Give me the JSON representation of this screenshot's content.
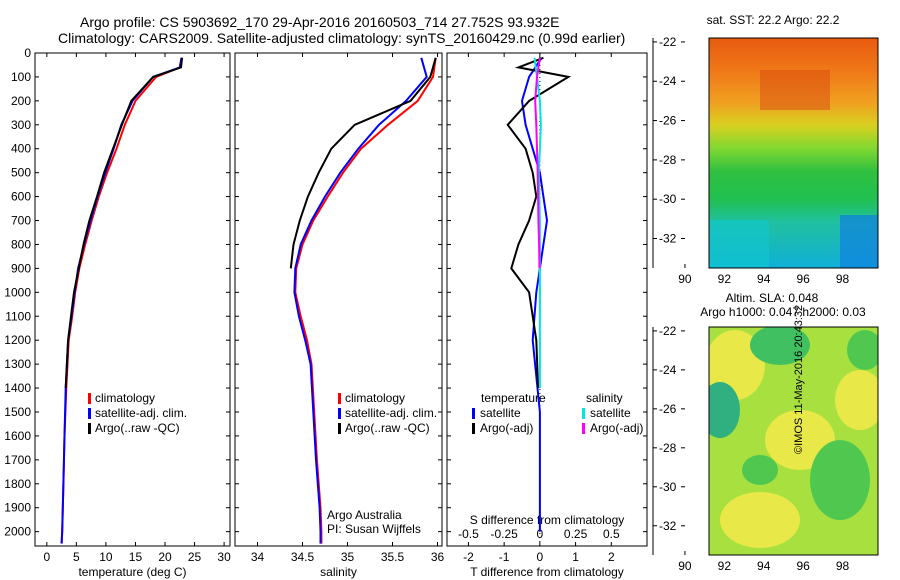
{
  "title": {
    "line1": "Argo profile: CS 5903692_170 29-Apr-2016 20160503_714 27.752S 93.932E",
    "line2": "Climatology: CARS2009. Satellite-adjusted climatology: synTS_20160429.nc (0.99d earlier)"
  },
  "credits": {
    "institution": "Argo Australia",
    "pi": "PI: Susan Wijffels",
    "stamp": "©IMOS 11-May-2016 20:43:32"
  },
  "colors": {
    "climatology": "#ff0000",
    "satellite": "#0000ff",
    "argo": "#000000",
    "sal_satellite": "#00e5e5",
    "sal_argo": "#ff00ff"
  },
  "chart_data": [
    {
      "type": "line",
      "id": "temperature-profile",
      "xlabel": "temperature (deg C)",
      "ylabel": "",
      "xlim": [
        -2,
        31
      ],
      "ylim": [
        2060,
        0
      ],
      "xticks": [
        0,
        5,
        10,
        15,
        20,
        25,
        30
      ],
      "yticks": [
        0,
        100,
        200,
        300,
        400,
        500,
        600,
        700,
        800,
        900,
        1000,
        1100,
        1200,
        1300,
        1400,
        1500,
        1600,
        1700,
        1800,
        1900,
        2000
      ],
      "legend": [
        "climatology",
        "satellite-adj. clim.",
        "Argo(..raw -QC)"
      ],
      "series": [
        {
          "name": "climatology",
          "color": "#ff0000",
          "x": [
            22.8,
            22.5,
            18.5,
            15,
            13.2,
            11.8,
            10.2,
            8.8,
            7.6,
            6.5,
            5.5,
            4.8,
            4.3,
            3.7,
            3.3,
            3.0,
            2.8,
            2.7,
            2.6,
            2.5
          ],
          "y": [
            20,
            60,
            100,
            200,
            300,
            400,
            500,
            600,
            700,
            800,
            900,
            1000,
            1100,
            1200,
            1400,
            1600,
            1800,
            1900,
            2000,
            2050
          ]
        },
        {
          "name": "satellite-adj. clim.",
          "color": "#0000ff",
          "x": [
            22.8,
            22.5,
            18.0,
            14.5,
            12.6,
            11.3,
            9.9,
            8.6,
            7.4,
            6.3,
            5.3,
            4.7,
            4.2,
            3.6,
            3.2,
            3.0,
            2.8,
            2.7,
            2.6,
            2.5
          ],
          "y": [
            20,
            60,
            100,
            200,
            300,
            400,
            500,
            600,
            700,
            800,
            900,
            1000,
            1100,
            1200,
            1400,
            1600,
            1800,
            1900,
            2000,
            2050
          ]
        },
        {
          "name": "Argo(..raw -QC)",
          "color": "#000000",
          "x": [
            22.9,
            22.7,
            18.0,
            14.3,
            12.7,
            11.2,
            9.7,
            8.5,
            7.2,
            6.2,
            5.0,
            4.6,
            4.1,
            3.6,
            3.2
          ],
          "y": [
            20,
            60,
            100,
            200,
            300,
            400,
            500,
            600,
            700,
            800,
            950,
            1000,
            1100,
            1200,
            1400
          ]
        }
      ]
    },
    {
      "type": "line",
      "id": "salinity-profile",
      "xlabel": "salinity",
      "ylabel": "",
      "xlim": [
        33.75,
        36.05
      ],
      "ylim": [
        2060,
        0
      ],
      "xticks": [
        34,
        34.5,
        35,
        35.5,
        36
      ],
      "legend": [
        "climatology",
        "satellite-adj. clim.",
        "Argo(..raw -QC)"
      ],
      "series": [
        {
          "name": "climatology",
          "color": "#ff0000",
          "x": [
            35.98,
            35.95,
            35.78,
            35.45,
            35.15,
            34.95,
            34.78,
            34.62,
            34.5,
            34.43,
            34.42,
            34.48,
            34.55,
            34.6,
            34.63,
            34.66,
            34.68,
            34.7,
            34.71,
            34.71
          ],
          "y": [
            20,
            100,
            200,
            300,
            400,
            500,
            600,
            700,
            800,
            900,
            1000,
            1100,
            1200,
            1300,
            1500,
            1700,
            1800,
            1900,
            2000,
            2050
          ]
        },
        {
          "name": "satellite-adj. clim.",
          "color": "#0000ff",
          "x": [
            35.82,
            35.88,
            35.65,
            35.35,
            35.12,
            34.92,
            34.75,
            34.6,
            34.48,
            34.42,
            34.41,
            34.46,
            34.53,
            34.59,
            34.62,
            34.65,
            34.67,
            34.69,
            34.7,
            34.7
          ],
          "y": [
            20,
            100,
            200,
            300,
            400,
            500,
            600,
            700,
            800,
            900,
            1000,
            1100,
            1200,
            1300,
            1500,
            1700,
            1800,
            1900,
            2000,
            2050
          ]
        },
        {
          "name": "Argo(..raw -QC)",
          "color": "#000000",
          "x": [
            35.98,
            35.92,
            35.7,
            35.08,
            34.82,
            34.68,
            34.56,
            34.47,
            34.4,
            34.37
          ],
          "y": [
            20,
            100,
            200,
            300,
            400,
            500,
            600,
            700,
            800,
            900
          ]
        }
      ]
    },
    {
      "type": "line",
      "id": "difference-profile",
      "xlabel": "T difference from climatology",
      "xlabel_top": "S difference from climatology",
      "ylabel": "",
      "xlim": [
        -2.6,
        3.0
      ],
      "ylim": [
        2060,
        0
      ],
      "xticks": [
        -2,
        -1,
        0,
        1,
        2
      ],
      "xticks_top": [
        -0.5,
        -0.25,
        0,
        0.25,
        0.5
      ],
      "legend_groups": [
        {
          "title": "temperature",
          "entries": [
            "satellite",
            "Argo(-adj)"
          ]
        },
        {
          "title": "salinity",
          "entries": [
            "satellite",
            "Argo(-adj)"
          ]
        }
      ],
      "series": [
        {
          "name": "temperature satellite",
          "color": "#0000ff",
          "x": [
            0.05,
            -0.3,
            -0.5,
            -0.4,
            -0.2,
            0,
            0.1,
            0.2,
            0.1,
            0,
            -0.1,
            -0.2,
            0,
            0
          ],
          "y": [
            20,
            100,
            200,
            300,
            400,
            500,
            600,
            700,
            800,
            900,
            1000,
            1200,
            1500,
            2000
          ]
        },
        {
          "name": "temperature Argo(-adj)",
          "color": "#000000",
          "x": [
            0.1,
            -0.6,
            0.8,
            -0.3,
            -0.9,
            -0.4,
            -0.2,
            -0.1,
            -0.3,
            -0.6,
            -0.8,
            -0.3,
            -0.1,
            -0.05
          ],
          "y": [
            20,
            60,
            100,
            200,
            300,
            400,
            500,
            600,
            700,
            800,
            900,
            1000,
            1200,
            1400
          ]
        },
        {
          "name": "salinity satellite",
          "color": "#00e5e5",
          "x": [
            -0.15,
            -0.08,
            0.0,
            0.03,
            0.0,
            -0.03,
            0,
            0,
            0
          ],
          "y": [
            20,
            100,
            200,
            300,
            400,
            500,
            700,
            1000,
            1400
          ]
        },
        {
          "name": "salinity Argo(-adj)",
          "color": "#ff00ff",
          "x": [
            0.0,
            -0.08,
            -0.13,
            -0.1,
            -0.08,
            -0.06,
            -0.05,
            -0.04,
            -0.02,
            -0.01
          ],
          "y": [
            20,
            100,
            200,
            300,
            400,
            500,
            600,
            700,
            800,
            900
          ]
        }
      ]
    },
    {
      "type": "heatmap",
      "id": "sst-map",
      "title": "sat. SST: 22.2  Argo: 22.2",
      "xticks": [
        90,
        92,
        94,
        96,
        98
      ],
      "yticks": [
        -22,
        -24,
        -26,
        -28,
        -30,
        -32
      ],
      "xlim": [
        89.8,
        99.8
      ],
      "ylim": [
        -33.5,
        -21.8
      ]
    },
    {
      "type": "heatmap",
      "id": "sla-map",
      "title": "Altim. SLA: 0.048",
      "subtitle": "Argo h1000: 0.047 h2000: 0.03",
      "xticks": [
        90,
        92,
        94,
        96,
        98
      ],
      "yticks": [
        -22,
        -24,
        -26,
        -28,
        -30,
        -32
      ],
      "xlim": [
        89.8,
        99.8
      ],
      "ylim": [
        -33.5,
        -21.8
      ]
    }
  ]
}
